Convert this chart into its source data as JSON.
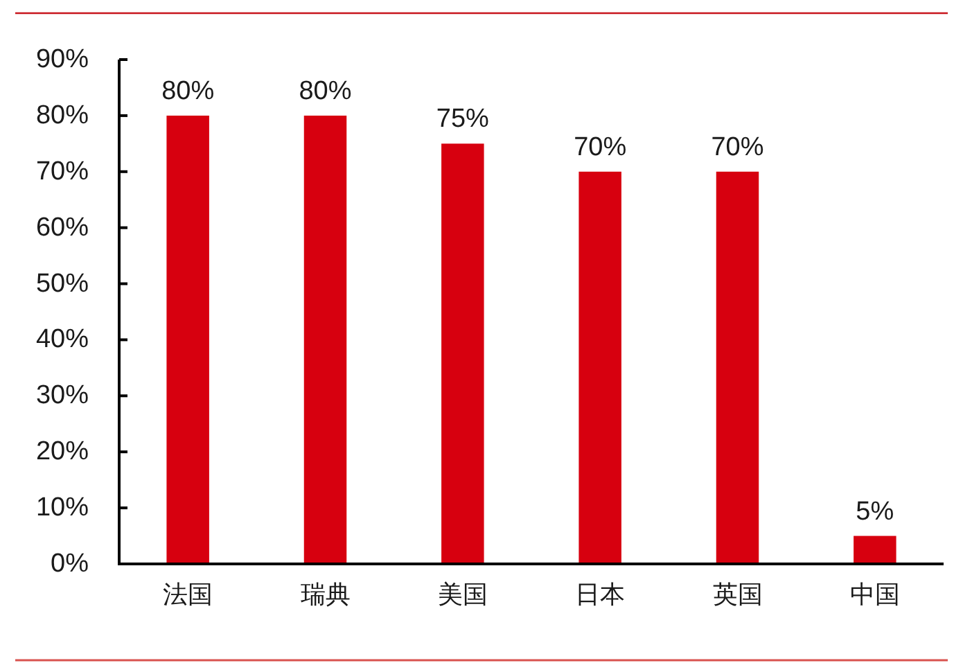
{
  "chart_data": {
    "type": "bar",
    "categories": [
      "法国",
      "瑞典",
      "美国",
      "日本",
      "英国",
      "中国"
    ],
    "values": [
      80,
      80,
      75,
      70,
      70,
      5
    ],
    "value_labels": [
      "80%",
      "80%",
      "75%",
      "70%",
      "70%",
      "5%"
    ],
    "color": "#d7000f",
    "ylim": [
      0,
      90
    ],
    "yticks": [
      {
        "value": 0,
        "label": "0%"
      },
      {
        "value": 10,
        "label": "10%"
      },
      {
        "value": 20,
        "label": "20%"
      },
      {
        "value": 30,
        "label": "30%"
      },
      {
        "value": 40,
        "label": "40%"
      },
      {
        "value": 50,
        "label": "50%"
      },
      {
        "value": 60,
        "label": "60%"
      },
      {
        "value": 70,
        "label": "70%"
      },
      {
        "value": 80,
        "label": "80%"
      },
      {
        "value": 90,
        "label": "90%"
      }
    ]
  }
}
